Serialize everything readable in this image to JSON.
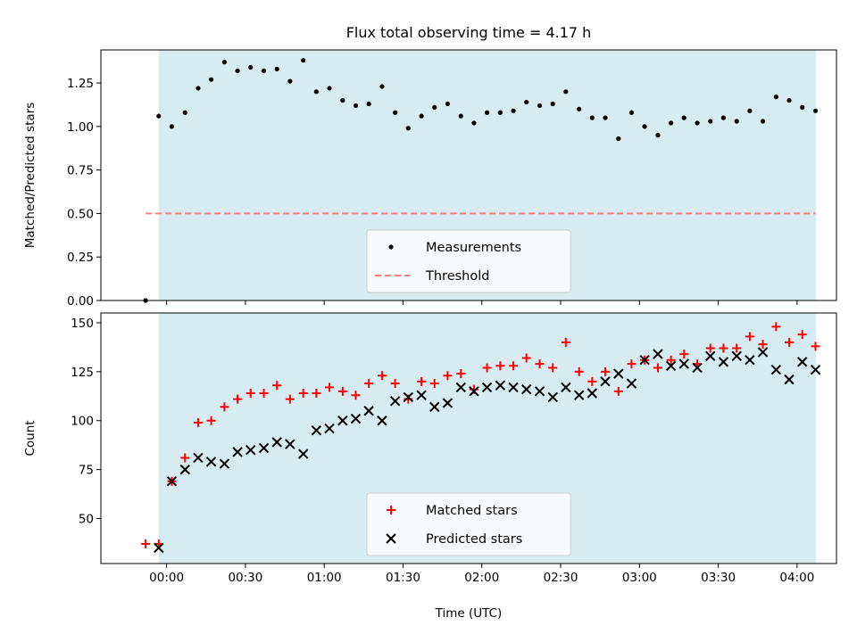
{
  "chart_data": [
    {
      "type": "scatter",
      "title": "Flux total observing time = 4.17 h",
      "xlabel": "",
      "ylabel": "Matched/Predicted stars",
      "xlim": [
        -0.417,
        4.25
      ],
      "ylim": [
        0,
        1.44
      ],
      "yticks": [
        0.0,
        0.25,
        0.5,
        0.75,
        1.0,
        1.25
      ],
      "ytick_labels": [
        "0.00",
        "0.25",
        "0.50",
        "0.75",
        "1.00",
        "1.25"
      ],
      "observing_window": [
        -0.05,
        4.12
      ],
      "grid": false,
      "legend_position": "lower-center",
      "series": [
        {
          "name": "Measurements",
          "marker": "dot",
          "color": "#000000",
          "x": [
            -0.133,
            -0.05,
            0.033,
            0.117,
            0.2,
            0.283,
            0.367,
            0.45,
            0.533,
            0.617,
            0.7,
            0.783,
            0.867,
            0.95,
            1.033,
            1.117,
            1.2,
            1.283,
            1.367,
            1.45,
            1.533,
            1.617,
            1.7,
            1.783,
            1.867,
            1.95,
            2.033,
            2.117,
            2.2,
            2.283,
            2.367,
            2.45,
            2.533,
            2.617,
            2.7,
            2.783,
            2.867,
            2.95,
            3.033,
            3.117,
            3.2,
            3.283,
            3.367,
            3.45,
            3.533,
            3.617,
            3.7,
            3.783,
            3.867,
            3.95,
            4.033,
            4.117
          ],
          "y": [
            0.0,
            1.06,
            1.0,
            1.08,
            1.22,
            1.27,
            1.37,
            1.32,
            1.34,
            1.32,
            1.33,
            1.26,
            1.38,
            1.2,
            1.22,
            1.15,
            1.12,
            1.13,
            1.23,
            1.08,
            0.99,
            1.06,
            1.11,
            1.13,
            1.06,
            1.02,
            1.08,
            1.08,
            1.09,
            1.14,
            1.12,
            1.13,
            1.2,
            1.1,
            1.05,
            1.05,
            0.93,
            1.08,
            1.0,
            0.95,
            1.02,
            1.05,
            1.02,
            1.03,
            1.05,
            1.03,
            1.09,
            1.03,
            1.17,
            1.15,
            1.11,
            1.09
          ]
        },
        {
          "name": "Threshold",
          "marker": "dashed-line",
          "color": "#ff7b7b",
          "x": [
            -0.133,
            4.117
          ],
          "y": [
            0.5,
            0.5
          ]
        }
      ]
    },
    {
      "type": "scatter",
      "title": "",
      "xlabel": "Time (UTC)",
      "ylabel": "Count",
      "xlim": [
        -0.417,
        4.25
      ],
      "ylim": [
        27,
        155
      ],
      "yticks": [
        50,
        75,
        100,
        125,
        150
      ],
      "ytick_labels": [
        "50",
        "75",
        "100",
        "125",
        "150"
      ],
      "xticks": [
        0,
        0.5,
        1,
        1.5,
        2,
        2.5,
        3,
        3.5,
        4
      ],
      "xtick_labels": [
        "00:00",
        "00:30",
        "01:00",
        "01:30",
        "02:00",
        "02:30",
        "03:00",
        "03:30",
        "04:00"
      ],
      "observing_window": [
        -0.05,
        4.12
      ],
      "grid": false,
      "legend_position": "lower-center",
      "series": [
        {
          "name": "Matched stars",
          "marker": "plus",
          "color": "#ff0000",
          "x": [
            -0.133,
            -0.05,
            0.033,
            0.117,
            0.2,
            0.283,
            0.367,
            0.45,
            0.533,
            0.617,
            0.7,
            0.783,
            0.867,
            0.95,
            1.033,
            1.117,
            1.2,
            1.283,
            1.367,
            1.45,
            1.533,
            1.617,
            1.7,
            1.783,
            1.867,
            1.95,
            2.033,
            2.117,
            2.2,
            2.283,
            2.367,
            2.45,
            2.533,
            2.617,
            2.7,
            2.783,
            2.867,
            2.95,
            3.033,
            3.117,
            3.2,
            3.283,
            3.367,
            3.45,
            3.533,
            3.617,
            3.7,
            3.783,
            3.867,
            3.95,
            4.033,
            4.117
          ],
          "y": [
            37,
            37,
            69,
            81,
            99,
            100,
            107,
            111,
            114,
            114,
            118,
            111,
            114,
            114,
            117,
            115,
            113,
            119,
            123,
            119,
            111,
            120,
            119,
            123,
            124,
            116,
            127,
            128,
            128,
            132,
            129,
            127,
            140,
            125,
            120,
            125,
            115,
            129,
            131,
            127,
            131,
            134,
            129,
            137,
            137,
            137,
            143,
            139,
            148,
            140,
            144,
            138
          ]
        },
        {
          "name": "Predicted stars",
          "marker": "cross",
          "color": "#000000",
          "x": [
            -0.05,
            0.033,
            0.117,
            0.2,
            0.283,
            0.367,
            0.45,
            0.533,
            0.617,
            0.7,
            0.783,
            0.867,
            0.95,
            1.033,
            1.117,
            1.2,
            1.283,
            1.367,
            1.45,
            1.533,
            1.617,
            1.7,
            1.783,
            1.867,
            1.95,
            2.033,
            2.117,
            2.2,
            2.283,
            2.367,
            2.45,
            2.533,
            2.617,
            2.7,
            2.783,
            2.867,
            2.95,
            3.033,
            3.117,
            3.2,
            3.283,
            3.367,
            3.45,
            3.533,
            3.617,
            3.7,
            3.783,
            3.867,
            3.95,
            4.033,
            4.117
          ],
          "y": [
            35,
            69,
            75,
            81,
            79,
            78,
            84,
            85,
            86,
            89,
            88,
            83,
            95,
            96,
            100,
            101,
            105,
            100,
            110,
            112,
            113,
            107,
            109,
            117,
            115,
            117,
            118,
            117,
            116,
            115,
            112,
            117,
            113,
            114,
            120,
            124,
            119,
            131,
            134,
            128,
            129,
            127,
            133,
            130,
            133,
            131,
            135,
            126,
            121,
            130,
            126
          ]
        }
      ]
    }
  ]
}
